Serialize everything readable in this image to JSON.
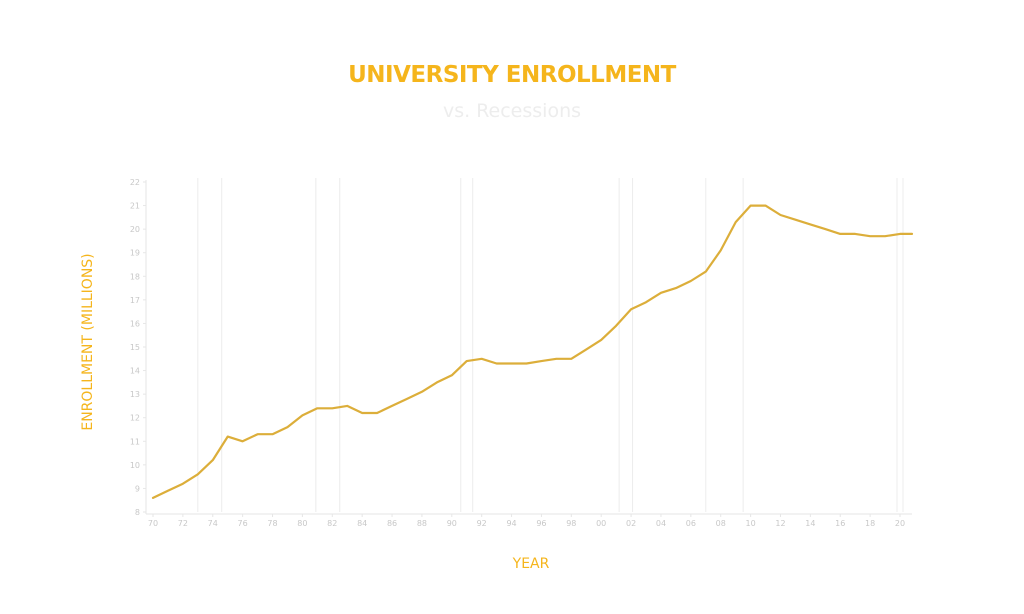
{
  "header": {
    "title": "UNIVERSITY ENROLLMENT",
    "subtitle": "vs. Recessions"
  },
  "colors": {
    "title": "#f5b51c",
    "line": "#dcae3a",
    "subtitle": "#ededed",
    "recession_line": "#ececec",
    "axis": "#e6e6e6"
  },
  "chart_data": {
    "type": "line",
    "title": "UNIVERSITY ENROLLMENT",
    "subtitle": "vs. Recessions",
    "xlabel": "YEAR",
    "ylabel": "ENROLLMENT (MILLIONS)",
    "ylim": [
      8,
      22
    ],
    "xlim": [
      1969.5,
      2020.8
    ],
    "grid": false,
    "legend": null,
    "yticks": [
      8,
      9,
      10,
      11,
      12,
      13,
      14,
      15,
      16,
      17,
      18,
      19,
      20,
      21,
      22
    ],
    "xtick_labels": [
      "70",
      "72",
      "74",
      "76",
      "78",
      "80",
      "82",
      "84",
      "86",
      "88",
      "90",
      "92",
      "94",
      "96",
      "98",
      "00",
      "02",
      "04",
      "06",
      "08",
      "10",
      "12",
      "14",
      "16",
      "18",
      "20"
    ],
    "xtick_years": [
      1970,
      1972,
      1974,
      1976,
      1978,
      1980,
      1982,
      1984,
      1986,
      1988,
      1990,
      1992,
      1994,
      1996,
      1998,
      2000,
      2002,
      2004,
      2006,
      2008,
      2010,
      2012,
      2014,
      2016,
      2018,
      2020
    ],
    "x": [
      1970,
      1971,
      1972,
      1973,
      1974,
      1975,
      1976,
      1977,
      1978,
      1979,
      1980,
      1981,
      1982,
      1983,
      1984,
      1985,
      1986,
      1987,
      1988,
      1989,
      1990,
      1991,
      1992,
      1993,
      1994,
      1995,
      1996,
      1997,
      1998,
      1999,
      2000,
      2001,
      2002,
      2003,
      2004,
      2005,
      2006,
      2007,
      2008,
      2009,
      2010,
      2011,
      2012,
      2013,
      2014,
      2015,
      2016,
      2017,
      2018,
      2019,
      2020,
      2020.8
    ],
    "series": [
      {
        "name": "Enrollment (millions)",
        "values": [
          8.6,
          8.9,
          9.2,
          9.6,
          10.2,
          11.2,
          11.0,
          11.3,
          11.3,
          11.6,
          12.1,
          12.4,
          12.4,
          12.5,
          12.2,
          12.2,
          12.5,
          12.8,
          13.1,
          13.5,
          13.8,
          14.4,
          14.5,
          14.3,
          14.3,
          14.3,
          14.4,
          14.5,
          14.5,
          14.9,
          15.3,
          15.9,
          16.6,
          16.9,
          17.3,
          17.5,
          17.8,
          18.2,
          19.1,
          20.3,
          21.0,
          21.0,
          20.6,
          20.4,
          20.2,
          20.0,
          19.8,
          19.8,
          19.7,
          19.7,
          19.8,
          19.8
        ]
      }
    ],
    "annotations": {
      "recessions": [
        {
          "start": 1973.0,
          "end": 1974.6
        },
        {
          "start": 1980.9,
          "end": 1982.5
        },
        {
          "start": 1990.6,
          "end": 1991.4
        },
        {
          "start": 2001.2,
          "end": 2002.1
        },
        {
          "start": 2007.0,
          "end": 2009.5
        },
        {
          "start": 2019.8,
          "end": 2020.2
        }
      ]
    }
  }
}
